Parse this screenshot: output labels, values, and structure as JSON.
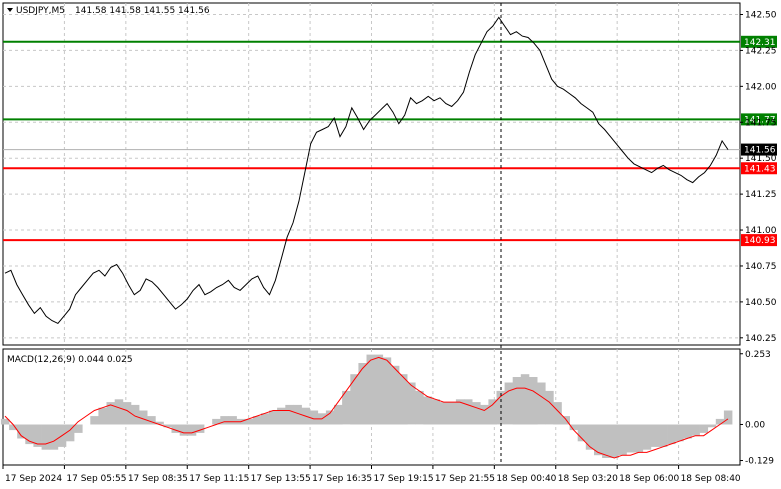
{
  "header": {
    "symbol": "USDJPY,M5",
    "ohlc": "141.58 141.58 141.55 141.56"
  },
  "colors": {
    "resistance": "#008000",
    "support": "#ff0000",
    "price_line": "#000000",
    "grid": "#c8c8c8",
    "macd_hist": "#c0c0c0",
    "macd_signal": "#ff0000",
    "current_tag": "#000000"
  },
  "chart_data": {
    "type": "line",
    "price_panel": {
      "ylim": [
        140.2,
        142.58
      ],
      "y_ticks": [
        "142.50",
        "142.25",
        "142.00",
        "141.75",
        "141.50",
        "141.25",
        "141.00",
        "140.75",
        "140.50",
        "140.25"
      ],
      "levels": [
        {
          "name": "resistance-2",
          "value": 142.31,
          "label": "142.31",
          "kind": "resistance"
        },
        {
          "name": "resistance-1",
          "value": 141.77,
          "label": "141.77",
          "kind": "resistance"
        },
        {
          "name": "support-1",
          "value": 141.43,
          "label": "141.43",
          "kind": "support"
        },
        {
          "name": "support-2",
          "value": 140.93,
          "label": "140.93",
          "kind": "support"
        }
      ],
      "current": {
        "value": 141.56,
        "label": "141.56"
      },
      "series": [
        140.7,
        140.72,
        140.62,
        140.55,
        140.48,
        140.42,
        140.46,
        140.4,
        140.37,
        140.35,
        140.4,
        140.45,
        140.55,
        140.6,
        140.65,
        140.7,
        140.72,
        140.68,
        140.74,
        140.76,
        140.7,
        140.62,
        140.55,
        140.58,
        140.66,
        140.64,
        140.6,
        140.55,
        140.5,
        140.45,
        140.48,
        140.52,
        140.58,
        140.62,
        140.55,
        140.57,
        140.6,
        140.62,
        140.65,
        140.6,
        140.58,
        140.62,
        140.66,
        140.68,
        140.6,
        140.55,
        140.65,
        140.8,
        140.95,
        141.05,
        141.2,
        141.4,
        141.6,
        141.68,
        141.7,
        141.72,
        141.78,
        141.65,
        141.72,
        141.85,
        141.78,
        141.7,
        141.76,
        141.8,
        141.84,
        141.88,
        141.82,
        141.74,
        141.8,
        141.92,
        141.88,
        141.9,
        141.93,
        141.9,
        141.92,
        141.88,
        141.86,
        141.9,
        141.96,
        142.1,
        142.22,
        142.3,
        142.38,
        142.42,
        142.48,
        142.42,
        142.36,
        142.38,
        142.35,
        142.34,
        142.3,
        142.25,
        142.15,
        142.05,
        142.0,
        141.98,
        141.95,
        141.92,
        141.88,
        141.85,
        141.82,
        141.74,
        141.7,
        141.65,
        141.6,
        141.55,
        141.5,
        141.46,
        141.44,
        141.42,
        141.4,
        141.43,
        141.45,
        141.42,
        141.4,
        141.38,
        141.35,
        141.33,
        141.37,
        141.4,
        141.45,
        141.52,
        141.62,
        141.56
      ],
      "time_labels": [
        "17 Sep 2024",
        "17 Sep 05:55",
        "17 Sep 08:35",
        "17 Sep 11:15",
        "17 Sep 13:55",
        "17 Sep 16:35",
        "17 Sep 19:15",
        "17 Sep 21:55",
        "18 Sep 00:40",
        "18 Sep 03:20",
        "18 Sep 06:00",
        "18 Sep 08:40"
      ]
    },
    "macd_panel": {
      "label": "MACD(12,26,9) 0.044 0.025",
      "ylim": [
        -0.145,
        0.27
      ],
      "y_ticks": [
        "0.253",
        "0.00",
        "-0.129"
      ],
      "histogram": [
        0.02,
        -0.02,
        -0.05,
        -0.07,
        -0.08,
        -0.09,
        -0.09,
        -0.08,
        -0.06,
        -0.03,
        0.0,
        0.03,
        0.06,
        0.08,
        0.09,
        0.08,
        0.07,
        0.05,
        0.03,
        0.01,
        -0.01,
        -0.03,
        -0.04,
        -0.04,
        -0.03,
        0.0,
        0.02,
        0.03,
        0.03,
        0.02,
        0.02,
        0.03,
        0.04,
        0.05,
        0.06,
        0.07,
        0.07,
        0.06,
        0.05,
        0.04,
        0.05,
        0.07,
        0.12,
        0.18,
        0.22,
        0.25,
        0.25,
        0.24,
        0.21,
        0.18,
        0.15,
        0.12,
        0.1,
        0.09,
        0.08,
        0.08,
        0.09,
        0.09,
        0.08,
        0.07,
        0.09,
        0.12,
        0.15,
        0.17,
        0.18,
        0.17,
        0.15,
        0.12,
        0.08,
        0.03,
        -0.02,
        -0.06,
        -0.09,
        -0.11,
        -0.12,
        -0.12,
        -0.11,
        -0.1,
        -0.1,
        -0.09,
        -0.08,
        -0.08,
        -0.07,
        -0.06,
        -0.05,
        -0.04,
        -0.03,
        -0.01,
        0.02,
        0.05
      ],
      "signal": [
        0.03,
        0.0,
        -0.04,
        -0.06,
        -0.07,
        -0.07,
        -0.06,
        -0.04,
        -0.02,
        0.01,
        0.03,
        0.05,
        0.06,
        0.07,
        0.06,
        0.05,
        0.03,
        0.02,
        0.01,
        0.0,
        -0.01,
        -0.02,
        -0.03,
        -0.03,
        -0.02,
        -0.01,
        0.0,
        0.01,
        0.01,
        0.01,
        0.02,
        0.03,
        0.04,
        0.05,
        0.05,
        0.05,
        0.04,
        0.03,
        0.02,
        0.02,
        0.04,
        0.08,
        0.12,
        0.16,
        0.2,
        0.23,
        0.24,
        0.23,
        0.2,
        0.17,
        0.14,
        0.12,
        0.1,
        0.09,
        0.08,
        0.08,
        0.08,
        0.07,
        0.06,
        0.05,
        0.07,
        0.1,
        0.12,
        0.13,
        0.13,
        0.12,
        0.1,
        0.08,
        0.05,
        0.02,
        -0.02,
        -0.05,
        -0.08,
        -0.1,
        -0.11,
        -0.12,
        -0.11,
        -0.11,
        -0.1,
        -0.1,
        -0.09,
        -0.08,
        -0.07,
        -0.06,
        -0.05,
        -0.04,
        -0.04,
        -0.02,
        0.0,
        0.02
      ]
    }
  }
}
